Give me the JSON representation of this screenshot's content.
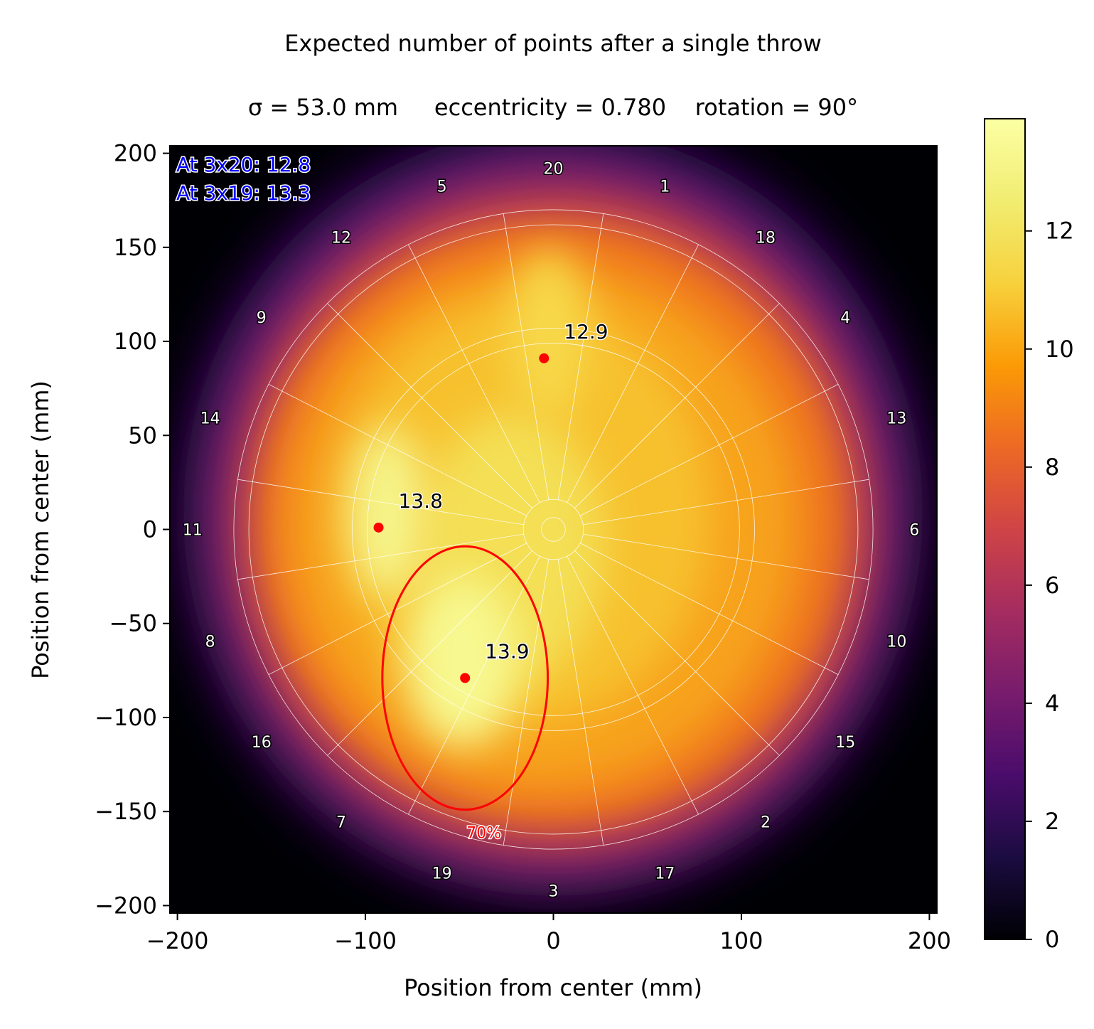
{
  "chart_data": {
    "type": "heatmap",
    "title": "Expected number of points after a single throw",
    "subtitle": "σ = 53.0 mm     eccentricity = 0.780    rotation = 90°",
    "xlabel": "Position from center (mm)",
    "ylabel": "Position from center (mm)",
    "xlim": [
      -204,
      204
    ],
    "ylim": [
      -204,
      204
    ],
    "x_ticks": [
      "−200",
      "−100",
      "0",
      "100",
      "200"
    ],
    "x_tick_values": [
      -200,
      -100,
      0,
      100,
      200
    ],
    "y_ticks": [
      "200",
      "150",
      "100",
      "50",
      "0",
      "−50",
      "−100",
      "−150",
      "−200"
    ],
    "y_tick_values": [
      200,
      150,
      100,
      50,
      0,
      -50,
      -100,
      -150,
      -200
    ],
    "colormap": "inferno",
    "colorbar": {
      "vmin": 0,
      "vmax": 13.9,
      "ticks": [
        "0",
        "2",
        "4",
        "6",
        "8",
        "10",
        "12"
      ],
      "tick_values": [
        0,
        2,
        4,
        6,
        8,
        10,
        12
      ]
    },
    "board_numbers": [
      "20",
      "1",
      "18",
      "4",
      "13",
      "6",
      "10",
      "15",
      "2",
      "17",
      "3",
      "19",
      "7",
      "16",
      "8",
      "11",
      "14",
      "9",
      "12",
      "5"
    ],
    "board_number_radius": 192,
    "board_radii": [
      6.35,
      16,
      99,
      107,
      162,
      170
    ],
    "peaks": [
      {
        "x": -5,
        "y": 91,
        "value": 12.9,
        "label": "12.9"
      },
      {
        "x": -93,
        "y": 1,
        "value": 13.8,
        "label": "13.8"
      },
      {
        "x": -47,
        "y": -79,
        "value": 13.9,
        "label": "13.9"
      }
    ],
    "ellipse": {
      "cx": -47,
      "cy": -79,
      "rx": 44,
      "ry": 70,
      "label": "70%"
    },
    "info_lines": [
      "At 3x20: 12.8",
      "At 3x19: 13.3"
    ]
  },
  "colors": {
    "peak_marker": "#ff0000",
    "ellipse": "#ff0000",
    "info_text": "#0000ff",
    "board_lines": "#ffffff"
  }
}
